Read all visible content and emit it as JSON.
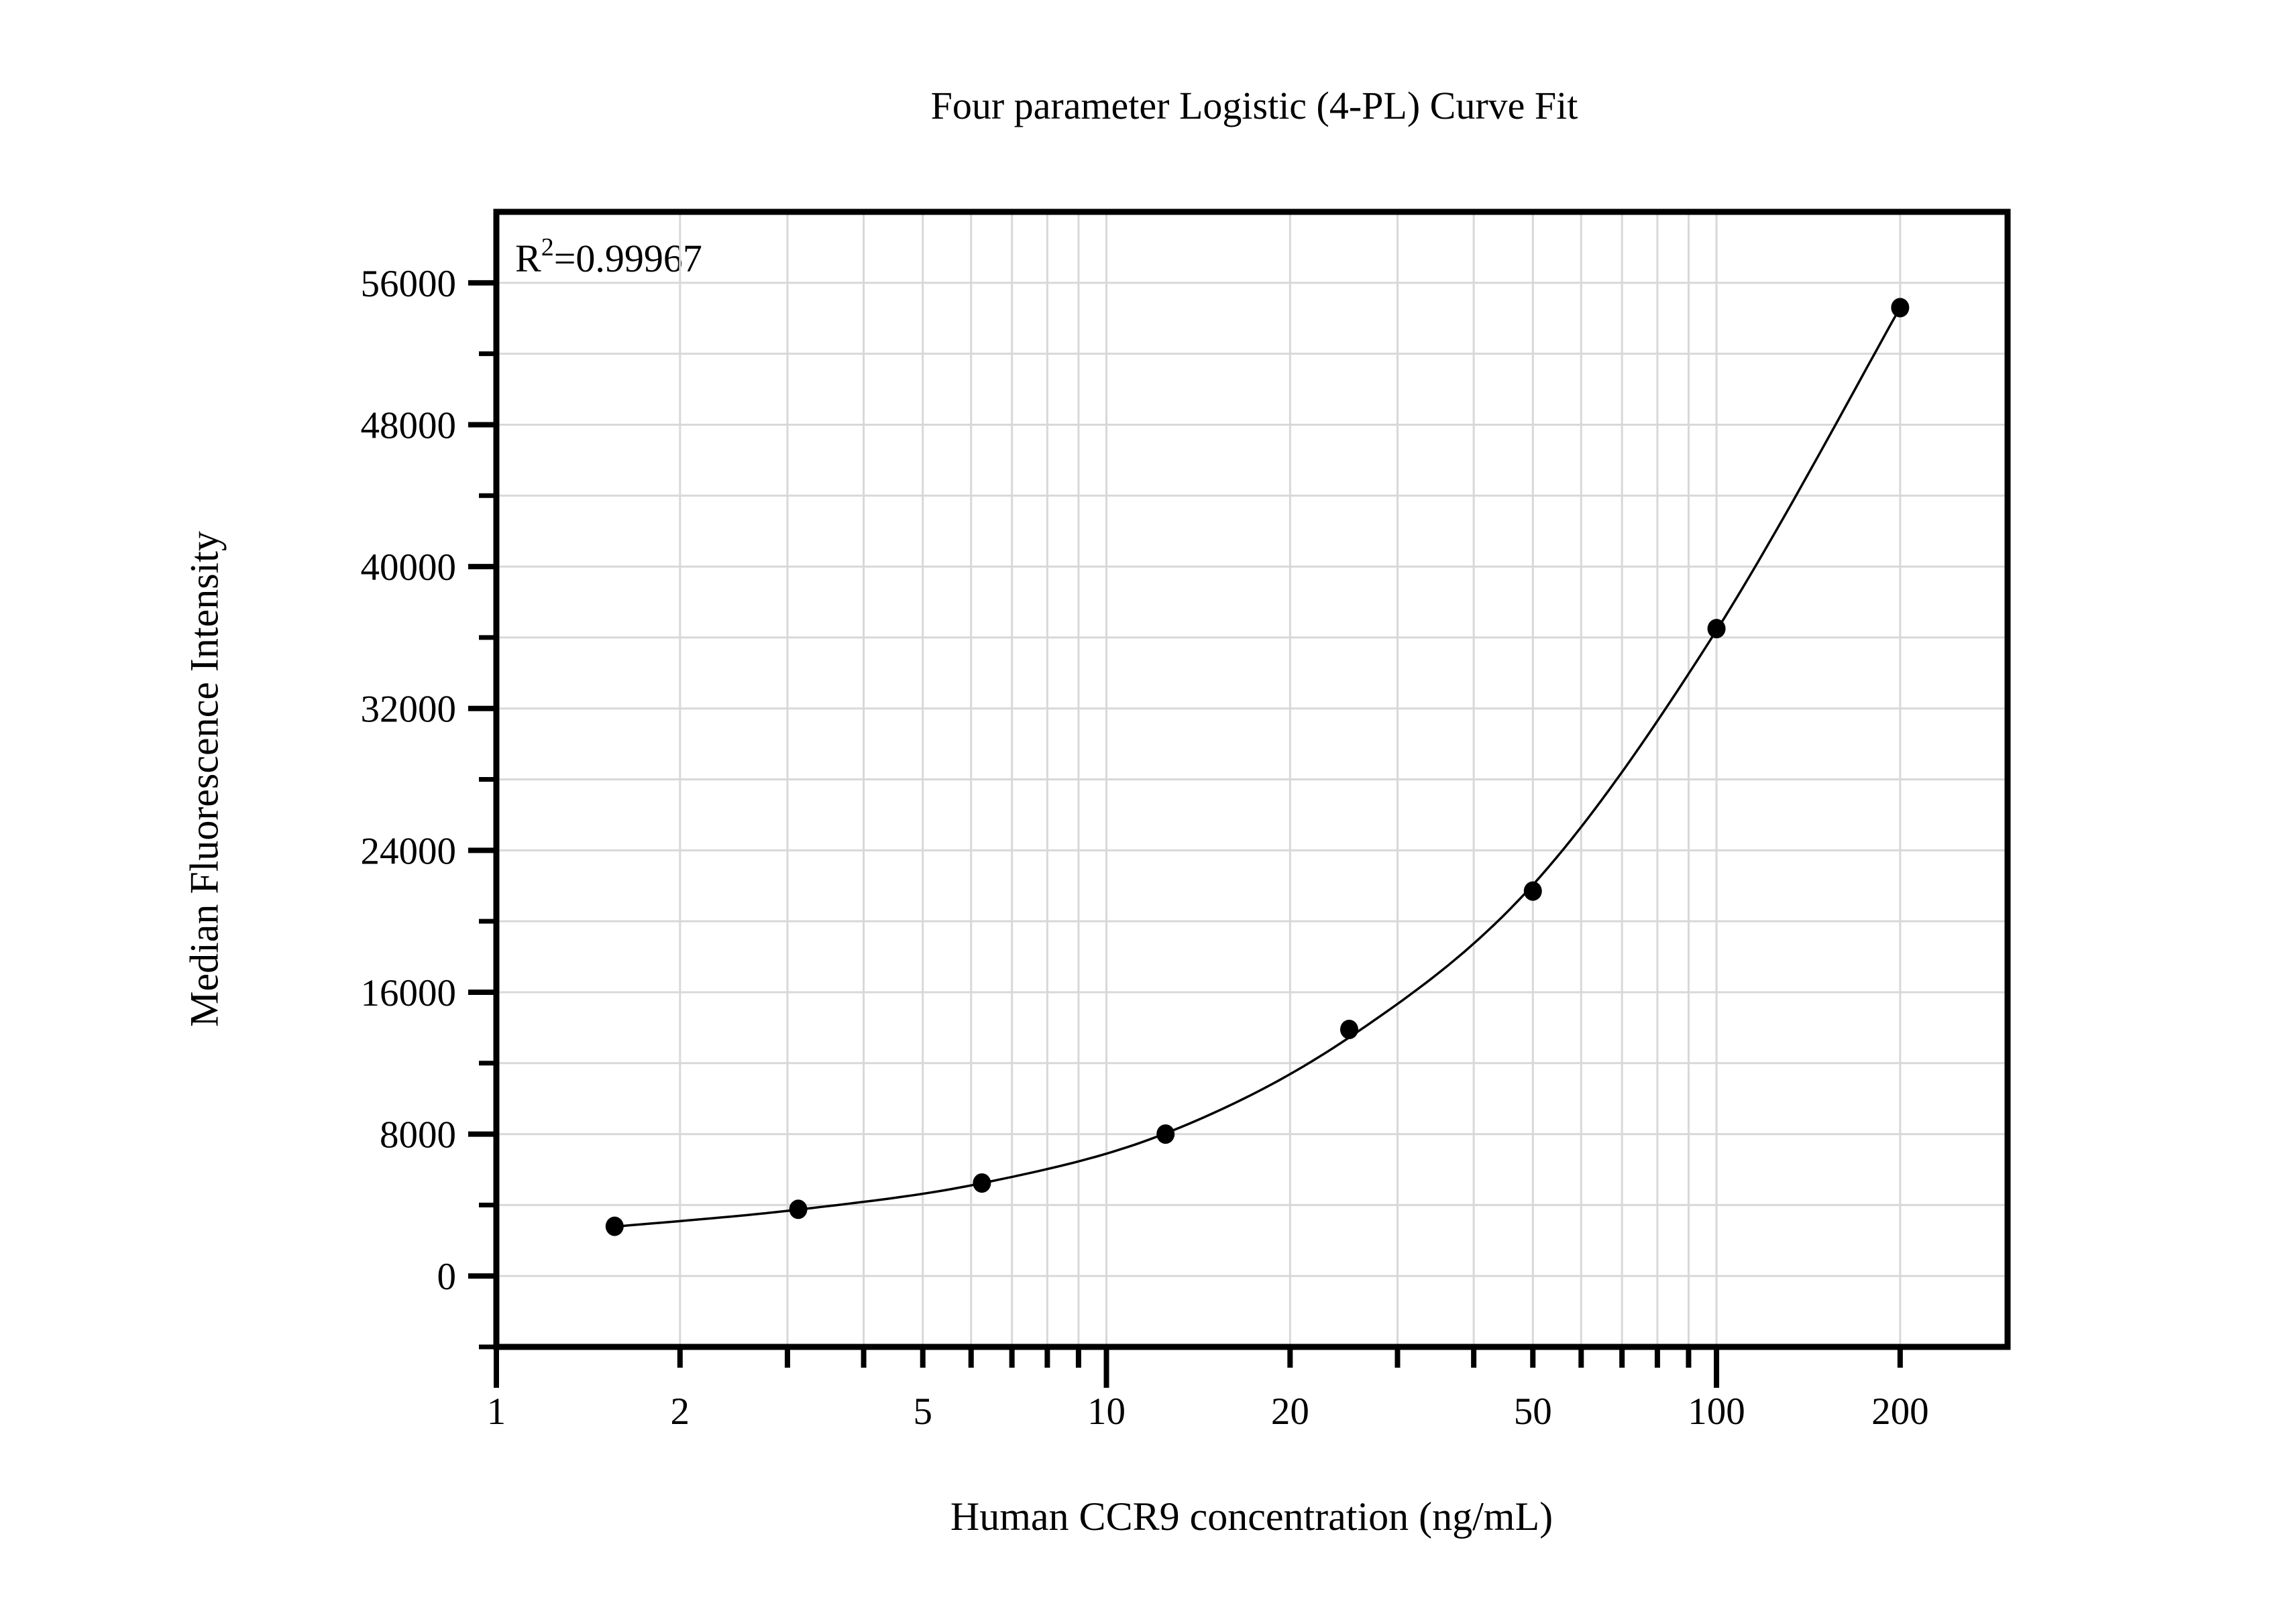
{
  "title": "Four parameter Logistic (4-PL) Curve Fit",
  "annotation": {
    "r_squared_base": "R",
    "r_squared_exponent": "2",
    "r_squared_value": "=0.99967"
  },
  "chart_data": {
    "type": "scatter",
    "title": "Four parameter Logistic (4-PL) Curve Fit",
    "xlabel": "Human CCR9 concentration (ng/mL)",
    "ylabel": "Median Fluorescence Intensity",
    "x_scale": "log10",
    "xlim": [
      1,
      300
    ],
    "ylim": [
      -4000,
      60000
    ],
    "grid": true,
    "grid_color": "#d8d8d8",
    "axis_color": "#000000",
    "marker_color": "#000000",
    "line_color": "#000000",
    "r_squared": 0.99967,
    "x_ticks_labeled": [
      1,
      2,
      5,
      10,
      20,
      50,
      100,
      200
    ],
    "x_ticks_all": [
      1,
      2,
      3,
      4,
      5,
      6,
      7,
      8,
      9,
      10,
      20,
      30,
      40,
      50,
      60,
      70,
      80,
      90,
      100,
      200
    ],
    "x_decade_ticks": [
      1,
      10,
      100
    ],
    "x_grid_values": [
      2,
      3,
      4,
      5,
      6,
      7,
      8,
      9,
      10,
      20,
      30,
      40,
      50,
      60,
      70,
      80,
      90,
      100,
      200
    ],
    "y_ticks_labeled": [
      0,
      8000,
      16000,
      24000,
      32000,
      40000,
      48000,
      56000
    ],
    "y_ticks_minor": [
      -4000,
      4000,
      12000,
      20000,
      28000,
      36000,
      44000,
      52000
    ],
    "y_grid_values": [
      0,
      4000,
      8000,
      12000,
      16000,
      20000,
      24000,
      28000,
      32000,
      36000,
      40000,
      44000,
      48000,
      52000,
      56000
    ],
    "series": [
      {
        "name": "standards",
        "x": [
          1.5625,
          3.125,
          6.25,
          12.5,
          25,
          50,
          100,
          200
        ],
        "y": [
          2800,
          3760,
          5240,
          8000,
          13900,
          21700,
          36500,
          54600
        ]
      }
    ],
    "fit_curve_anchors": [
      [
        1.5625,
        2780
      ],
      [
        3.125,
        3740
      ],
      [
        6.25,
        5230
      ],
      [
        12.5,
        8040
      ],
      [
        25,
        13450
      ],
      [
        50,
        22050
      ],
      [
        100,
        36400
      ],
      [
        200,
        54600
      ]
    ]
  }
}
